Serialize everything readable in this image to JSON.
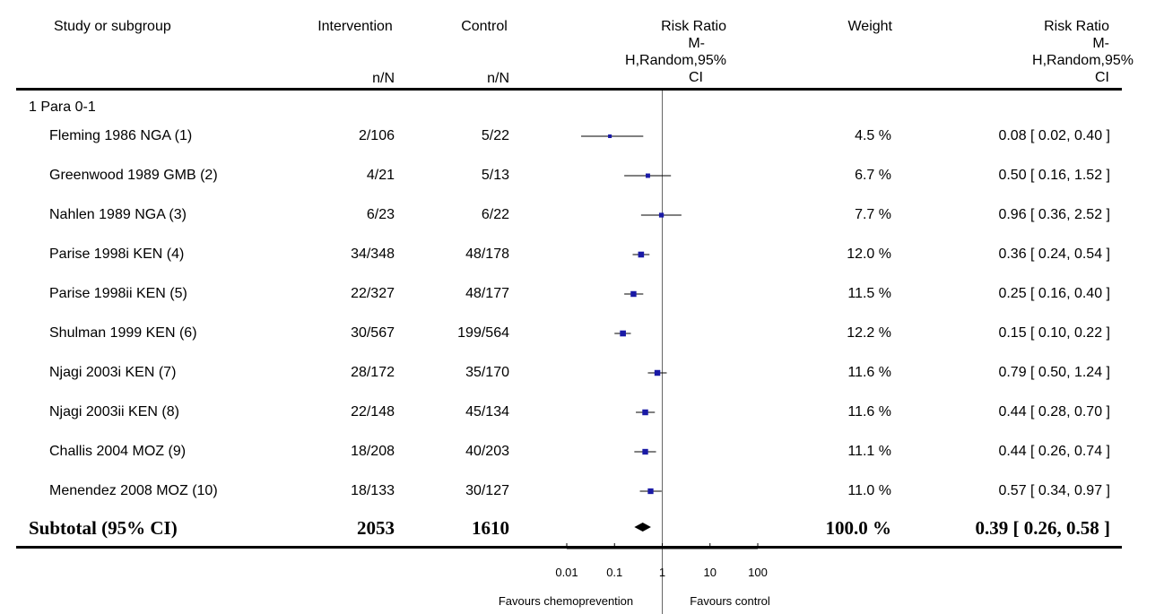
{
  "header": {
    "study": "Study or subgroup",
    "intervention": "Intervention",
    "intervention_sub": "n/N",
    "control": "Control",
    "control_sub": "n/N",
    "rr_plot": [
      "Risk Ratio",
      "M-",
      "H,Random,95%",
      "CI"
    ],
    "weight": "Weight",
    "rr_text": [
      "Risk Ratio",
      "M-",
      "H,Random,95%",
      "CI"
    ]
  },
  "subgroup_label": "1 Para 0-1",
  "rows": [
    {
      "study": "Fleming 1986 NGA (1)",
      "intervention": "2/106",
      "control": "5/22",
      "weight": "4.5 %",
      "ci_text": "0.08 [ 0.02, 0.40 ]"
    },
    {
      "study": "Greenwood 1989 GMB (2)",
      "intervention": "4/21",
      "control": "5/13",
      "weight": "6.7 %",
      "ci_text": "0.50 [ 0.16, 1.52 ]"
    },
    {
      "study": "Nahlen 1989 NGA (3)",
      "intervention": "6/23",
      "control": "6/22",
      "weight": "7.7 %",
      "ci_text": "0.96 [ 0.36, 2.52 ]"
    },
    {
      "study": "Parise 1998i KEN (4)",
      "intervention": "34/348",
      "control": "48/178",
      "weight": "12.0 %",
      "ci_text": "0.36 [ 0.24, 0.54 ]"
    },
    {
      "study": "Parise 1998ii KEN (5)",
      "intervention": "22/327",
      "control": "48/177",
      "weight": "11.5 %",
      "ci_text": "0.25 [ 0.16, 0.40 ]"
    },
    {
      "study": "Shulman 1999 KEN (6)",
      "intervention": "30/567",
      "control": "199/564",
      "weight": "12.2 %",
      "ci_text": "0.15 [ 0.10, 0.22 ]"
    },
    {
      "study": "Njagi 2003i KEN (7)",
      "intervention": "28/172",
      "control": "35/170",
      "weight": "11.6 %",
      "ci_text": "0.79 [ 0.50, 1.24 ]"
    },
    {
      "study": "Njagi 2003ii KEN (8)",
      "intervention": "22/148",
      "control": "45/134",
      "weight": "11.6 %",
      "ci_text": "0.44 [ 0.28, 0.70 ]"
    },
    {
      "study": "Challis 2004 MOZ (9)",
      "intervention": "18/208",
      "control": "40/203",
      "weight": "11.1 %",
      "ci_text": "0.44 [ 0.26, 0.74 ]"
    },
    {
      "study": "Menendez 2008 MOZ (10)",
      "intervention": "18/133",
      "control": "30/127",
      "weight": "11.0 %",
      "ci_text": "0.57 [ 0.34, 0.97 ]"
    }
  ],
  "subtotal": {
    "label": "Subtotal (95% CI)",
    "intervention": "2053",
    "control": "1610",
    "weight": "100.0 %",
    "ci_text": "0.39 [ 0.26, 0.58 ]"
  },
  "axis": {
    "ticks": [
      "0.01",
      "0.1",
      "1",
      "10",
      "100"
    ],
    "favours_left": "Favours chemoprevention",
    "favours_right": "Favours control"
  },
  "colors": {
    "point": "#1a1aa6",
    "diamond": "#000000",
    "line": "#000000",
    "null_line": "#666666"
  },
  "chart_data": {
    "type": "forest",
    "scale": "log",
    "xlim": [
      0.01,
      100
    ],
    "ticks": [
      0.01,
      0.1,
      1,
      10,
      100
    ],
    "null_value": 1,
    "categories": [
      "Fleming 1986 NGA (1)",
      "Greenwood 1989 GMB (2)",
      "Nahlen 1989 NGA (3)",
      "Parise 1998i KEN (4)",
      "Parise 1998ii KEN (5)",
      "Shulman 1999 KEN (6)",
      "Njagi 2003i KEN (7)",
      "Njagi 2003ii KEN (8)",
      "Challis 2004 MOZ (9)",
      "Menendez 2008 MOZ (10)"
    ],
    "estimates": [
      0.08,
      0.5,
      0.96,
      0.36,
      0.25,
      0.15,
      0.79,
      0.44,
      0.44,
      0.57
    ],
    "lower": [
      0.02,
      0.16,
      0.36,
      0.24,
      0.16,
      0.1,
      0.5,
      0.28,
      0.26,
      0.34
    ],
    "upper": [
      0.4,
      1.52,
      2.52,
      0.54,
      0.4,
      0.22,
      1.24,
      0.7,
      0.74,
      0.97
    ],
    "weights": [
      4.5,
      6.7,
      7.7,
      12.0,
      11.5,
      12.2,
      11.6,
      11.6,
      11.1,
      11.0
    ],
    "pooled": {
      "estimate": 0.39,
      "lower": 0.26,
      "upper": 0.58
    }
  }
}
